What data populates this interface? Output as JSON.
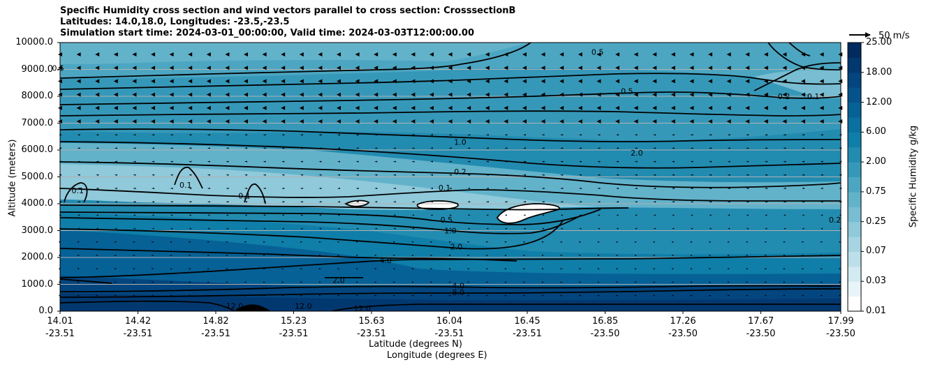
{
  "title_lines": [
    "Specific Humidity cross section and wind vectors parallel to cross section: CrosssectionB",
    "Latitudes: 14.0,18.0, Longitudes: -23.5,-23.5",
    "Simulation start time: 2024-03-01_00:00:00, Valid time: 2024-03-03T12:00:00.00"
  ],
  "chart_data": {
    "type": "heatmap",
    "title": "Specific Humidity cross section and wind vectors parallel to cross section: CrosssectionB",
    "ylabel": "Altitude (meters)",
    "xlabel_lines": [
      "Latitude (degrees N)",
      "Longitude (degrees E)"
    ],
    "ylim": [
      0,
      10000
    ],
    "yticks": [
      "0.0",
      "1000.0",
      "2000.0",
      "3000.0",
      "4000.0",
      "5000.0",
      "6000.0",
      "7000.0",
      "8000.0",
      "9000.0",
      "10000.0"
    ],
    "xticks": [
      {
        "lat": "14.01",
        "lon": "-23.51"
      },
      {
        "lat": "14.42",
        "lon": "-23.51"
      },
      {
        "lat": "14.82",
        "lon": "-23.51"
      },
      {
        "lat": "15.23",
        "lon": "-23.51"
      },
      {
        "lat": "15.63",
        "lon": "-23.51"
      },
      {
        "lat": "16.04",
        "lon": "-23.51"
      },
      {
        "lat": "16.45",
        "lon": "-23.51"
      },
      {
        "lat": "16.85",
        "lon": "-23.50"
      },
      {
        "lat": "17.26",
        "lon": "-23.50"
      },
      {
        "lat": "17.67",
        "lon": "-23.50"
      },
      {
        "lat": "17.99",
        "lon": "-23.50"
      }
    ],
    "horizontal_grid": true,
    "colorbar": {
      "label": "Specific Humidity g/kg",
      "levels": [
        0.01,
        0.02,
        0.03,
        0.05,
        0.07,
        0.1,
        0.25,
        0.5,
        0.75,
        1.0,
        2.0,
        4.0,
        6.0,
        9.0,
        12.0,
        15.0,
        18.0,
        21.0,
        25.0
      ],
      "tick_labels": [
        "0.01",
        "0.03",
        "0.07",
        "0.25",
        "0.75",
        "2.00",
        "6.00",
        "12.00",
        "18.00",
        "25.00"
      ],
      "colors": [
        "#ffffff",
        "#e8f4f8",
        "#d2eaf1",
        "#bcdfe9",
        "#a6d4e2",
        "#8fc9da",
        "#78bdd2",
        "#62b2ca",
        "#4ca6c2",
        "#3698b9",
        "#228bb0",
        "#0f7ea8",
        "#0a70a0",
        "#066196",
        "#04538b",
        "#03457e",
        "#023870",
        "#012a5f"
      ],
      "extent": "0.01–25.00 g/kg"
    },
    "contour_labels": [
      {
        "value": "0.5",
        "lat": 14.0,
        "alt": 9050
      },
      {
        "value": "0.5",
        "lat": 16.75,
        "alt": 9650
      },
      {
        "value": "0.5",
        "lat": 16.9,
        "alt": 8200
      },
      {
        "value": "0.2",
        "lat": 17.7,
        "alt": 8000
      },
      {
        "value": "0.1",
        "lat": 17.85,
        "alt": 8000
      },
      {
        "value": "1.0",
        "lat": 16.05,
        "alt": 6300
      },
      {
        "value": "2.0",
        "lat": 16.95,
        "alt": 5900
      },
      {
        "value": "0.2",
        "lat": 16.05,
        "alt": 5200
      },
      {
        "value": "0.1",
        "lat": 15.97,
        "alt": 4600
      },
      {
        "value": "0.5",
        "lat": 15.98,
        "alt": 3400
      },
      {
        "value": "1.0",
        "lat": 16.0,
        "alt": 3000
      },
      {
        "value": "2.0",
        "lat": 16.03,
        "alt": 2400
      },
      {
        "value": "4.0",
        "lat": 15.67,
        "alt": 1900
      },
      {
        "value": "4.0",
        "lat": 16.04,
        "alt": 950
      },
      {
        "value": "8.0",
        "lat": 16.04,
        "alt": 700
      },
      {
        "value": "2.0",
        "lat": 15.43,
        "alt": 1150
      },
      {
        "value": "12.0",
        "lat": 14.9,
        "alt": 200
      },
      {
        "value": "12.0",
        "lat": 15.25,
        "alt": 200
      },
      {
        "value": "12.0",
        "lat": 15.55,
        "alt": 100
      },
      {
        "value": "0.1",
        "lat": 14.1,
        "alt": 4500
      },
      {
        "value": "0.1",
        "lat": 14.65,
        "alt": 4700
      },
      {
        "value": "0.1",
        "lat": 14.95,
        "alt": 4300
      },
      {
        "value": "0.2",
        "lat": 17.96,
        "alt": 3400
      }
    ],
    "wind_key": "50 m/s"
  }
}
